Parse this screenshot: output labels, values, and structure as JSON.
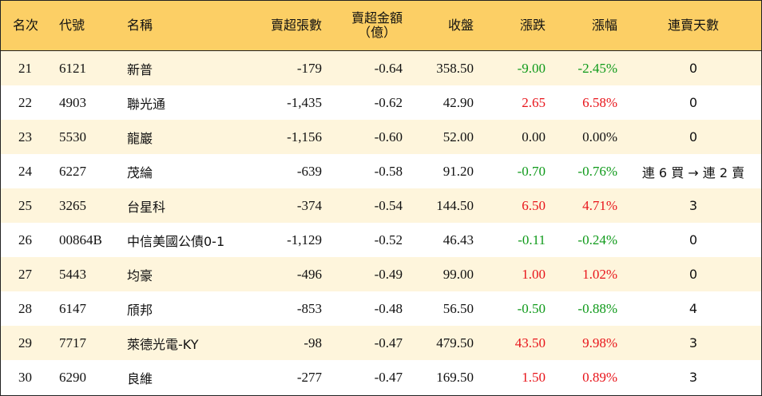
{
  "headers": {
    "rank": "名次",
    "code": "代號",
    "name": "名稱",
    "net_sell_shares": "賣超張數",
    "net_sell_amount_line1": "賣超金額",
    "net_sell_amount_line2": "（億）",
    "close": "收盤",
    "change": "漲跌",
    "change_pct": "漲幅",
    "streak": "連賣天數"
  },
  "colors": {
    "header_bg": "#fccf65",
    "stripe_bg": "#fef5dc",
    "up": "#e8151b",
    "down": "#0f9a1a",
    "flat": "#111111"
  },
  "rows": [
    {
      "rank": "21",
      "code": "6121",
      "name": "新普",
      "net_sell_shares": "-179",
      "net_sell_amount": "-0.64",
      "close": "358.50",
      "change": "-9.00",
      "change_pct": "-2.45%",
      "trend": "down",
      "streak": "0"
    },
    {
      "rank": "22",
      "code": "4903",
      "name": "聯光通",
      "net_sell_shares": "-1,435",
      "net_sell_amount": "-0.62",
      "close": "42.90",
      "change": "2.65",
      "change_pct": "6.58%",
      "trend": "up",
      "streak": "0"
    },
    {
      "rank": "23",
      "code": "5530",
      "name": "龍巖",
      "net_sell_shares": "-1,156",
      "net_sell_amount": "-0.60",
      "close": "52.00",
      "change": "0.00",
      "change_pct": "0.00%",
      "trend": "flat",
      "streak": "0"
    },
    {
      "rank": "24",
      "code": "6227",
      "name": "茂綸",
      "net_sell_shares": "-639",
      "net_sell_amount": "-0.58",
      "close": "91.20",
      "change": "-0.70",
      "change_pct": "-0.76%",
      "trend": "down",
      "streak": "連 6 買 → 連 2 賣"
    },
    {
      "rank": "25",
      "code": "3265",
      "name": "台星科",
      "net_sell_shares": "-374",
      "net_sell_amount": "-0.54",
      "close": "144.50",
      "change": "6.50",
      "change_pct": "4.71%",
      "trend": "up",
      "streak": "3"
    },
    {
      "rank": "26",
      "code": "00864B",
      "name": "中信美國公債0-1",
      "net_sell_shares": "-1,129",
      "net_sell_amount": "-0.52",
      "close": "46.43",
      "change": "-0.11",
      "change_pct": "-0.24%",
      "trend": "down",
      "streak": "0"
    },
    {
      "rank": "27",
      "code": "5443",
      "name": "均豪",
      "net_sell_shares": "-496",
      "net_sell_amount": "-0.49",
      "close": "99.00",
      "change": "1.00",
      "change_pct": "1.02%",
      "trend": "up",
      "streak": "0"
    },
    {
      "rank": "28",
      "code": "6147",
      "name": "頎邦",
      "net_sell_shares": "-853",
      "net_sell_amount": "-0.48",
      "close": "56.50",
      "change": "-0.50",
      "change_pct": "-0.88%",
      "trend": "down",
      "streak": "4"
    },
    {
      "rank": "29",
      "code": "7717",
      "name": "萊德光電-KY",
      "net_sell_shares": "-98",
      "net_sell_amount": "-0.47",
      "close": "479.50",
      "change": "43.50",
      "change_pct": "9.98%",
      "trend": "up",
      "streak": "3"
    },
    {
      "rank": "30",
      "code": "6290",
      "name": "良維",
      "net_sell_shares": "-277",
      "net_sell_amount": "-0.47",
      "close": "169.50",
      "change": "1.50",
      "change_pct": "0.89%",
      "trend": "up",
      "streak": "3"
    }
  ]
}
